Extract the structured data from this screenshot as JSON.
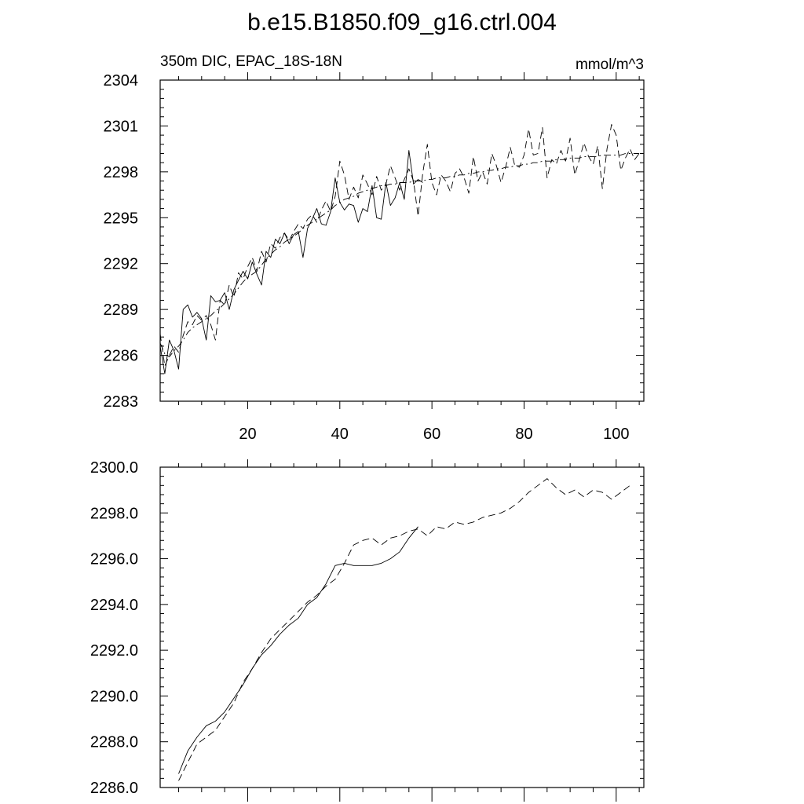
{
  "title": "b.e15.B1850.f09_g16.ctrl.004",
  "chart_data": [
    {
      "type": "line",
      "subtitle_left": "350m DIC, EPAC_18S-18N",
      "subtitle_right": "mmol/m^3",
      "xlim": [
        1,
        106
      ],
      "ylim": [
        2283,
        2304
      ],
      "x_ticks": [
        20,
        40,
        60,
        80,
        100
      ],
      "x_tick_labels": [
        "20",
        "40",
        "60",
        "80",
        "100"
      ],
      "y_ticks": [
        2283,
        2286,
        2289,
        2292,
        2295,
        2298,
        2301,
        2304
      ],
      "y_tick_labels": [
        "2283",
        "2286",
        "2289",
        "2292",
        "2295",
        "2298",
        "2301",
        "2304"
      ],
      "grid": false,
      "series": [
        {
          "style": "solid",
          "x": [
            1,
            2,
            3,
            4,
            5,
            6,
            7,
            8,
            9,
            10,
            11,
            12,
            13,
            14,
            15,
            16,
            17,
            18,
            19,
            20,
            21,
            22,
            23,
            24,
            25,
            26,
            27,
            28,
            29,
            30,
            31,
            32,
            33,
            34,
            35,
            36,
            37,
            38,
            39,
            40,
            41,
            42,
            43,
            44,
            45,
            46,
            47,
            48,
            49,
            50,
            51,
            52,
            53,
            54,
            55,
            56,
            57,
            58
          ],
          "y": [
            2286.6,
            2284.8,
            2287.0,
            2286.3,
            2285.1,
            2289.0,
            2289.3,
            2288.5,
            2288.8,
            2288.4,
            2287.0,
            2289.9,
            2289.5,
            2289.6,
            2290.1,
            2289.0,
            2290.3,
            2290.9,
            2291.5,
            2291.0,
            2292.1,
            2291.3,
            2290.6,
            2292.8,
            2292.4,
            2293.6,
            2293.3,
            2294.0,
            2293.3,
            2293.9,
            2294.1,
            2292.4,
            2294.3,
            2294.9,
            2295.6,
            2294.6,
            2294.5,
            2295.4,
            2297.6,
            2296.0,
            2295.5,
            2295.9,
            2295.8,
            2294.7,
            2295.6,
            2295.4,
            2297.1,
            2295.0,
            2294.9,
            2297.3,
            2295.8,
            2296.3,
            2297.3,
            2296.2,
            2299.4,
            2297.2,
            2297.5,
            2297.3
          ]
        },
        {
          "style": "dashed",
          "x": [
            1,
            2,
            3,
            4,
            5,
            6,
            7,
            8,
            9,
            10,
            11,
            12,
            13,
            14,
            15,
            16,
            17,
            18,
            19,
            20,
            21,
            22,
            23,
            24,
            25,
            26,
            27,
            28,
            29,
            30,
            31,
            32,
            33,
            34,
            35,
            36,
            37,
            38,
            39,
            40,
            41,
            42,
            43,
            44,
            45,
            46,
            47,
            48,
            49,
            50,
            51,
            52,
            53,
            54,
            55,
            56,
            57,
            58,
            59,
            60,
            61,
            62,
            63,
            64,
            65,
            66,
            67,
            68,
            69,
            70,
            71,
            72,
            73,
            74,
            75,
            76,
            77,
            78,
            79,
            80,
            81,
            82,
            83,
            84,
            85,
            86,
            87,
            88,
            89,
            90,
            91,
            92,
            93,
            94,
            95,
            96,
            97,
            98,
            99,
            100,
            101,
            102,
            103,
            104,
            105
          ],
          "y": [
            2287.4,
            2285.3,
            2286.0,
            2286.6,
            2286.2,
            2287.3,
            2288.2,
            2288.0,
            2288.6,
            2288.3,
            2288.6,
            2288.0,
            2287.0,
            2289.6,
            2289.3,
            2290.6,
            2289.8,
            2291.4,
            2291.0,
            2291.8,
            2292.4,
            2291.5,
            2292.8,
            2292.1,
            2293.3,
            2293.0,
            2293.7,
            2294.0,
            2293.5,
            2294.1,
            2294.6,
            2294.3,
            2294.9,
            2295.2,
            2294.7,
            2295.5,
            2296.1,
            2295.4,
            2296.4,
            2298.7,
            2297.8,
            2296.2,
            2297.0,
            2296.3,
            2297.8,
            2297.2,
            2296.5,
            2297.7,
            2296.8,
            2297.2,
            2298.4,
            2297.6,
            2296.8,
            2297.5,
            2298.2,
            2297.4,
            2295.1,
            2297.9,
            2299.8,
            2297.3,
            2296.5,
            2297.8,
            2297.4,
            2296.7,
            2297.9,
            2298.2,
            2297.6,
            2296.6,
            2299.0,
            2297.4,
            2298.0,
            2297.2,
            2299.2,
            2298.4,
            2297.3,
            2298.3,
            2299.6,
            2298.4,
            2298.3,
            2299.1,
            2300.8,
            2299.1,
            2299.2,
            2300.9,
            2297.6,
            2298.8,
            2298.5,
            2299.4,
            2298.7,
            2300.2,
            2297.8,
            2298.8,
            2299.9,
            2299.0,
            2298.5,
            2299.7,
            2296.9,
            2299.5,
            2301.1,
            2300.4,
            2298.1,
            2298.9,
            2299.5,
            2298.8,
            2299.2
          ]
        },
        {
          "style": "dash-dot",
          "x": [
            1,
            2,
            3,
            4,
            5,
            6,
            7,
            8,
            9,
            10,
            11,
            12,
            13,
            14,
            15,
            16,
            17,
            18,
            19,
            20,
            21,
            22,
            23,
            24,
            25,
            26,
            27,
            28,
            29,
            30,
            31,
            32,
            33,
            34,
            35,
            36,
            37,
            38,
            39,
            40,
            41,
            42,
            43,
            44,
            45,
            46,
            47,
            48,
            49,
            50,
            51,
            52,
            53,
            54,
            55,
            56,
            57,
            58,
            59,
            60,
            61,
            62,
            63,
            64,
            65,
            66,
            67,
            68,
            69,
            70,
            71,
            72,
            73,
            74,
            75,
            76,
            77,
            78,
            79,
            80,
            81,
            82,
            83,
            84,
            85,
            86,
            87,
            88,
            89,
            90,
            91,
            92,
            93,
            94,
            95,
            96,
            97,
            98,
            99,
            100,
            101,
            102,
            103,
            104,
            105
          ],
          "y": [
            2286.8,
            2286.1,
            2285.9,
            2286.3,
            2286.6,
            2287.0,
            2287.5,
            2287.8,
            2288.0,
            2288.2,
            2288.4,
            2288.6,
            2288.9,
            2289.1,
            2289.4,
            2289.7,
            2290.0,
            2290.4,
            2290.8,
            2291.1,
            2291.3,
            2291.5,
            2291.9,
            2292.3,
            2292.6,
            2292.9,
            2293.1,
            2293.4,
            2293.6,
            2293.8,
            2294.0,
            2294.3,
            2294.5,
            2294.7,
            2294.9,
            2295.1,
            2295.3,
            2295.5,
            2295.8,
            2296.0,
            2296.2,
            2296.3,
            2296.4,
            2296.6,
            2296.7,
            2296.8,
            2296.9,
            2297.0,
            2297.1,
            2297.1,
            2297.2,
            2297.2,
            2297.3,
            2297.3,
            2297.3,
            2297.4,
            2297.4,
            2297.4,
            2297.5,
            2297.5,
            2297.6,
            2297.6,
            2297.6,
            2297.7,
            2297.7,
            2297.8,
            2297.8,
            2297.9,
            2297.9,
            2298.0,
            2298.0,
            2298.1,
            2298.1,
            2298.2,
            2298.2,
            2298.3,
            2298.3,
            2298.4,
            2298.4,
            2298.5,
            2298.5,
            2298.6,
            2298.6,
            2298.7,
            2298.7,
            2298.7,
            2298.8,
            2298.8,
            2298.8,
            2298.9,
            2298.9,
            2298.9,
            2299.0,
            2299.0,
            2299.0,
            2299.0,
            2299.1,
            2299.1,
            2299.1,
            2299.1,
            2299.1,
            2299.2,
            2299.2,
            2299.2,
            2299.2
          ]
        }
      ]
    },
    {
      "type": "line",
      "xlim": [
        1,
        106
      ],
      "ylim": [
        2286.0,
        2300.0
      ],
      "x_ticks": [
        20,
        40,
        60,
        80,
        100
      ],
      "y_ticks": [
        2286.0,
        2288.0,
        2290.0,
        2292.0,
        2294.0,
        2296.0,
        2298.0,
        2300.0
      ],
      "y_tick_labels": [
        "2286.0",
        "2288.0",
        "2290.0",
        "2292.0",
        "2294.0",
        "2296.0",
        "2298.0",
        "2300.0"
      ],
      "grid": false,
      "series": [
        {
          "style": "solid",
          "x": [
            5,
            7,
            9,
            11,
            13,
            15,
            17,
            19,
            21,
            23,
            25,
            27,
            29,
            31,
            33,
            35,
            37,
            39,
            41,
            43,
            45,
            47,
            49,
            51,
            53,
            55,
            57
          ],
          "y": [
            2286.6,
            2287.6,
            2288.2,
            2288.7,
            2288.9,
            2289.3,
            2289.9,
            2290.5,
            2291.2,
            2291.8,
            2292.2,
            2292.7,
            2293.1,
            2293.4,
            2294.0,
            2294.3,
            2294.9,
            2295.7,
            2295.8,
            2295.7,
            2295.7,
            2295.7,
            2295.8,
            2296.0,
            2296.3,
            2296.9,
            2297.4
          ]
        },
        {
          "style": "dashed",
          "x": [
            5,
            7,
            9,
            11,
            13,
            15,
            17,
            19,
            21,
            23,
            25,
            27,
            29,
            31,
            33,
            35,
            37,
            39,
            41,
            43,
            45,
            47,
            49,
            51,
            53,
            55,
            57,
            59,
            61,
            63,
            65,
            67,
            69,
            71,
            73,
            75,
            77,
            79,
            81,
            83,
            85,
            87,
            89,
            91,
            93,
            95,
            97,
            99,
            101,
            103
          ],
          "y": [
            2286.3,
            2287.1,
            2287.9,
            2288.2,
            2288.5,
            2289.1,
            2289.7,
            2290.6,
            2291.2,
            2291.9,
            2292.5,
            2292.9,
            2293.3,
            2293.7,
            2294.1,
            2294.4,
            2294.8,
            2295.1,
            2295.8,
            2296.6,
            2296.8,
            2296.9,
            2296.6,
            2296.9,
            2297.0,
            2297.2,
            2297.3,
            2297.0,
            2297.4,
            2297.3,
            2297.6,
            2297.5,
            2297.6,
            2297.8,
            2297.9,
            2298.0,
            2298.2,
            2298.5,
            2298.9,
            2299.2,
            2299.5,
            2299.1,
            2298.8,
            2299.0,
            2298.7,
            2299.0,
            2298.9,
            2298.6,
            2298.9,
            2299.2
          ]
        }
      ]
    }
  ]
}
